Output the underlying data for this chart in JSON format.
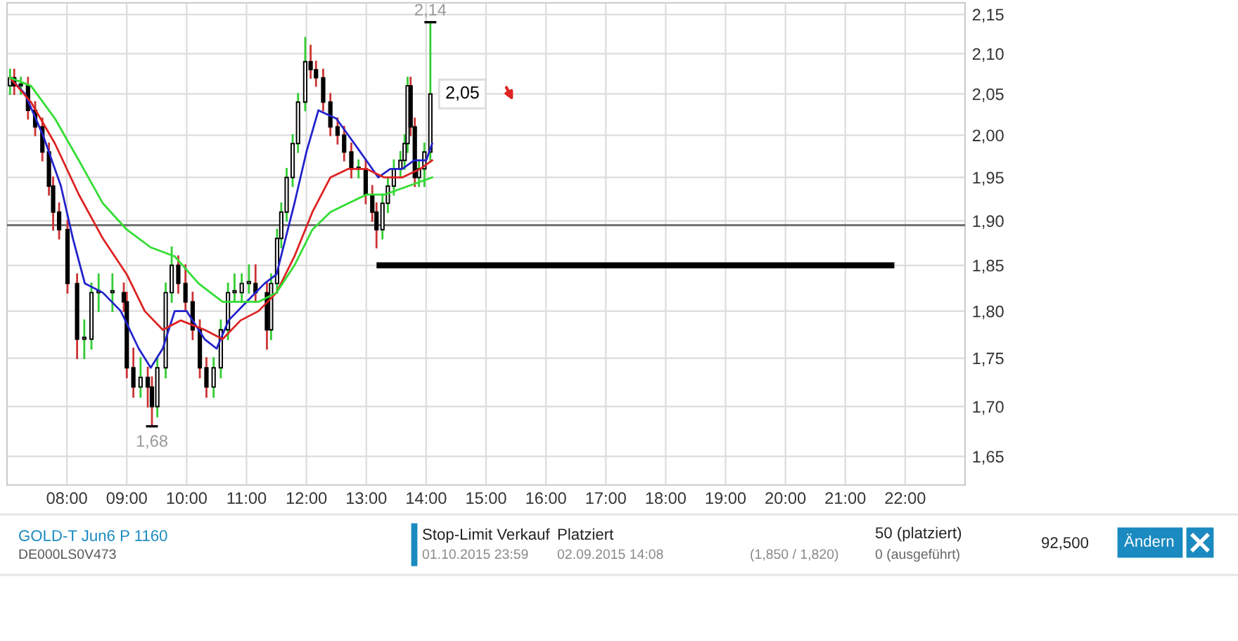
{
  "chart_data": [
    {
      "type": "candlestick",
      "color": "#000000",
      "log": "y",
      "grid": true,
      "legend": false,
      "xlim": [
        7,
        23
      ],
      "ylim": [
        1.622,
        2.165
      ],
      "xticks": [
        {
          "value": 8,
          "label": "08:00"
        },
        {
          "value": 9,
          "label": "09:00"
        },
        {
          "value": 10,
          "label": "10:00"
        },
        {
          "value": 11,
          "label": "11:00"
        },
        {
          "value": 12,
          "label": "12:00"
        },
        {
          "value": 13,
          "label": "13:00"
        },
        {
          "value": 14,
          "label": "14:00"
        },
        {
          "value": 15,
          "label": "15:00"
        },
        {
          "value": 16,
          "label": "16:00"
        },
        {
          "value": 17,
          "label": "17:00"
        },
        {
          "value": 18,
          "label": "18:00"
        },
        {
          "value": 19,
          "label": "19:00"
        },
        {
          "value": 20,
          "label": "20:00"
        },
        {
          "value": 21,
          "label": "21:00"
        },
        {
          "value": 22,
          "label": "22:00"
        }
      ],
      "yticks": [
        {
          "value": 1.65,
          "label": "1,65"
        },
        {
          "value": 1.7,
          "label": "1,70"
        },
        {
          "value": 1.75,
          "label": "1,75"
        },
        {
          "value": 1.8,
          "label": "1,80"
        },
        {
          "value": 1.85,
          "label": "1,85"
        },
        {
          "value": 1.9,
          "label": "1,90"
        },
        {
          "value": 1.95,
          "label": "1,95"
        },
        {
          "value": 2.0,
          "label": "2,00"
        },
        {
          "value": 2.05,
          "label": "2,05"
        },
        {
          "value": 2.1,
          "label": "2,10"
        },
        {
          "value": 2.15,
          "label": "2,15"
        }
      ],
      "x": [
        7.05,
        7.12,
        7.23,
        7.35,
        7.47,
        7.59,
        7.7,
        7.77,
        7.87,
        8.01,
        8.17,
        8.29,
        8.41,
        8.53,
        8.76,
        8.95,
        9.0,
        9.11,
        9.23,
        9.35,
        9.42,
        9.51,
        9.65,
        9.75,
        9.86,
        9.98,
        10.1,
        10.22,
        10.33,
        10.45,
        10.57,
        10.69,
        10.8,
        10.92,
        11.04,
        11.15,
        11.34,
        11.41,
        11.51,
        11.58,
        11.67,
        11.77,
        11.86,
        11.98,
        12.07,
        12.16,
        12.28,
        12.4,
        12.52,
        12.63,
        12.75,
        12.87,
        12.99,
        13.1,
        13.17,
        13.27,
        13.36,
        13.46,
        13.57,
        13.64,
        13.69,
        13.74,
        13.81,
        13.88,
        13.97,
        14.07
      ],
      "ohlc": [
        [
          2.06,
          2.08,
          2.05,
          2.07
        ],
        [
          2.07,
          2.08,
          2.05,
          2.06
        ],
        [
          2.06,
          2.07,
          2.05,
          2.06
        ],
        [
          2.06,
          2.07,
          2.02,
          2.03
        ],
        [
          2.03,
          2.04,
          2.0,
          2.01
        ],
        [
          2.01,
          2.02,
          1.97,
          1.98
        ],
        [
          1.98,
          1.99,
          1.93,
          1.94
        ],
        [
          1.94,
          1.95,
          1.89,
          1.91
        ],
        [
          1.91,
          1.92,
          1.88,
          1.89
        ],
        [
          1.89,
          1.9,
          1.82,
          1.83
        ],
        [
          1.83,
          1.84,
          1.75,
          1.77
        ],
        [
          1.77,
          1.79,
          1.75,
          1.77
        ],
        [
          1.77,
          1.83,
          1.76,
          1.82
        ],
        [
          1.82,
          1.84,
          1.8,
          1.82
        ],
        [
          1.82,
          1.84,
          1.8,
          1.82
        ],
        [
          1.82,
          1.83,
          1.8,
          1.81
        ],
        [
          1.81,
          1.82,
          1.73,
          1.74
        ],
        [
          1.74,
          1.76,
          1.71,
          1.72
        ],
        [
          1.72,
          1.75,
          1.71,
          1.73
        ],
        [
          1.73,
          1.74,
          1.7,
          1.72
        ],
        [
          1.72,
          1.73,
          1.68,
          1.7
        ],
        [
          1.7,
          1.75,
          1.69,
          1.74
        ],
        [
          1.74,
          1.83,
          1.73,
          1.82
        ],
        [
          1.82,
          1.87,
          1.81,
          1.85
        ],
        [
          1.85,
          1.86,
          1.82,
          1.83
        ],
        [
          1.83,
          1.85,
          1.8,
          1.81
        ],
        [
          1.81,
          1.82,
          1.77,
          1.78
        ],
        [
          1.78,
          1.79,
          1.73,
          1.74
        ],
        [
          1.74,
          1.75,
          1.71,
          1.72
        ],
        [
          1.72,
          1.75,
          1.71,
          1.74
        ],
        [
          1.74,
          1.79,
          1.73,
          1.78
        ],
        [
          1.78,
          1.83,
          1.77,
          1.82
        ],
        [
          1.82,
          1.84,
          1.81,
          1.82
        ],
        [
          1.82,
          1.84,
          1.81,
          1.83
        ],
        [
          1.83,
          1.85,
          1.82,
          1.83
        ],
        [
          1.83,
          1.85,
          1.81,
          1.82
        ],
        [
          1.82,
          1.83,
          1.76,
          1.78
        ],
        [
          1.78,
          1.84,
          1.77,
          1.83
        ],
        [
          1.83,
          1.89,
          1.82,
          1.88
        ],
        [
          1.88,
          1.92,
          1.87,
          1.91
        ],
        [
          1.91,
          1.96,
          1.9,
          1.95
        ],
        [
          1.95,
          2.0,
          1.94,
          1.99
        ],
        [
          1.99,
          2.05,
          1.98,
          2.04
        ],
        [
          2.04,
          2.12,
          2.03,
          2.09
        ],
        [
          2.09,
          2.11,
          2.07,
          2.08
        ],
        [
          2.08,
          2.09,
          2.06,
          2.07
        ],
        [
          2.07,
          2.08,
          2.03,
          2.04
        ],
        [
          2.04,
          2.05,
          2.0,
          2.01
        ],
        [
          2.01,
          2.02,
          1.99,
          2.0
        ],
        [
          2.0,
          2.01,
          1.97,
          1.98
        ],
        [
          1.98,
          1.99,
          1.95,
          1.96
        ],
        [
          1.96,
          1.97,
          1.95,
          1.96
        ],
        [
          1.96,
          1.97,
          1.92,
          1.93
        ],
        [
          1.93,
          1.94,
          1.9,
          1.91
        ],
        [
          1.91,
          1.92,
          1.87,
          1.89
        ],
        [
          1.89,
          1.93,
          1.88,
          1.92
        ],
        [
          1.92,
          1.95,
          1.91,
          1.94
        ],
        [
          1.94,
          1.97,
          1.93,
          1.96
        ],
        [
          1.96,
          1.98,
          1.95,
          1.97
        ],
        [
          1.97,
          2.0,
          1.96,
          1.99
        ],
        [
          1.99,
          2.07,
          1.98,
          2.06
        ],
        [
          2.06,
          2.07,
          2.0,
          2.01
        ],
        [
          2.01,
          2.02,
          1.94,
          1.95
        ],
        [
          1.95,
          1.97,
          1.94,
          1.96
        ],
        [
          1.96,
          1.99,
          1.94,
          1.98
        ],
        [
          1.98,
          2.14,
          1.97,
          2.05
        ]
      ],
      "series": [
        {
          "type": "line",
          "color": "#2222cc",
          "x": [
            7.05,
            7.3,
            7.6,
            7.9,
            8.1,
            8.3,
            8.6,
            8.9,
            9.2,
            9.4,
            9.6,
            9.8,
            10.0,
            10.3,
            10.5,
            10.7,
            11.0,
            11.3,
            11.5,
            11.8,
            12.0,
            12.2,
            12.5,
            12.8,
            13.0,
            13.2,
            13.4,
            13.6,
            13.8,
            14.0,
            14.1
          ],
          "values": [
            2.07,
            2.05,
            2.0,
            1.94,
            1.88,
            1.83,
            1.82,
            1.8,
            1.76,
            1.74,
            1.76,
            1.8,
            1.8,
            1.77,
            1.76,
            1.79,
            1.81,
            1.83,
            1.84,
            1.92,
            1.98,
            2.03,
            2.02,
            1.99,
            1.97,
            1.95,
            1.96,
            1.96,
            1.97,
            1.97,
            1.99
          ]
        },
        {
          "type": "line",
          "color": "#dd2222",
          "x": [
            7.05,
            7.4,
            7.8,
            8.2,
            8.6,
            9.0,
            9.3,
            9.6,
            9.9,
            10.3,
            10.6,
            10.9,
            11.2,
            11.5,
            11.8,
            12.1,
            12.4,
            12.7,
            13.0,
            13.3,
            13.6,
            13.9,
            14.1
          ],
          "values": [
            2.07,
            2.04,
            1.99,
            1.93,
            1.88,
            1.84,
            1.8,
            1.78,
            1.79,
            1.78,
            1.77,
            1.79,
            1.8,
            1.82,
            1.86,
            1.91,
            1.95,
            1.96,
            1.96,
            1.95,
            1.95,
            1.96,
            1.97
          ]
        },
        {
          "type": "line",
          "color": "#33dd33",
          "x": [
            7.05,
            7.4,
            7.8,
            8.2,
            8.6,
            9.0,
            9.4,
            9.8,
            10.2,
            10.6,
            10.9,
            11.2,
            11.5,
            11.8,
            12.1,
            12.4,
            12.7,
            13.0,
            13.3,
            13.7,
            14.1
          ],
          "values": [
            2.07,
            2.06,
            2.02,
            1.97,
            1.92,
            1.89,
            1.87,
            1.86,
            1.83,
            1.81,
            1.81,
            1.81,
            1.82,
            1.85,
            1.89,
            1.91,
            1.92,
            1.93,
            1.93,
            1.94,
            1.95
          ]
        },
        {
          "type": "line",
          "color": "#000000",
          "x": [
            13.22,
            21.77
          ],
          "values": [
            1.85,
            1.85
          ]
        }
      ],
      "ref_lines": [
        {
          "axis": "y",
          "value": 1.895,
          "color": "#666666"
        }
      ],
      "annotations": [
        "2,14",
        "1,68",
        "2,05"
      ]
    },
    {
      "type": "other",
      "annotations": [
        "GOLD-T Jun6 P 1160",
        "DE000LS0V473",
        "Stop-Limit Verkauf",
        "01.10.2015 23:59",
        "Platziert",
        "02.09.2015 14:08",
        "(1,850 / 1,820)",
        "50 (platziert)",
        "0 (ausgeführt)",
        "92,500",
        "Ändern"
      ]
    }
  ]
}
